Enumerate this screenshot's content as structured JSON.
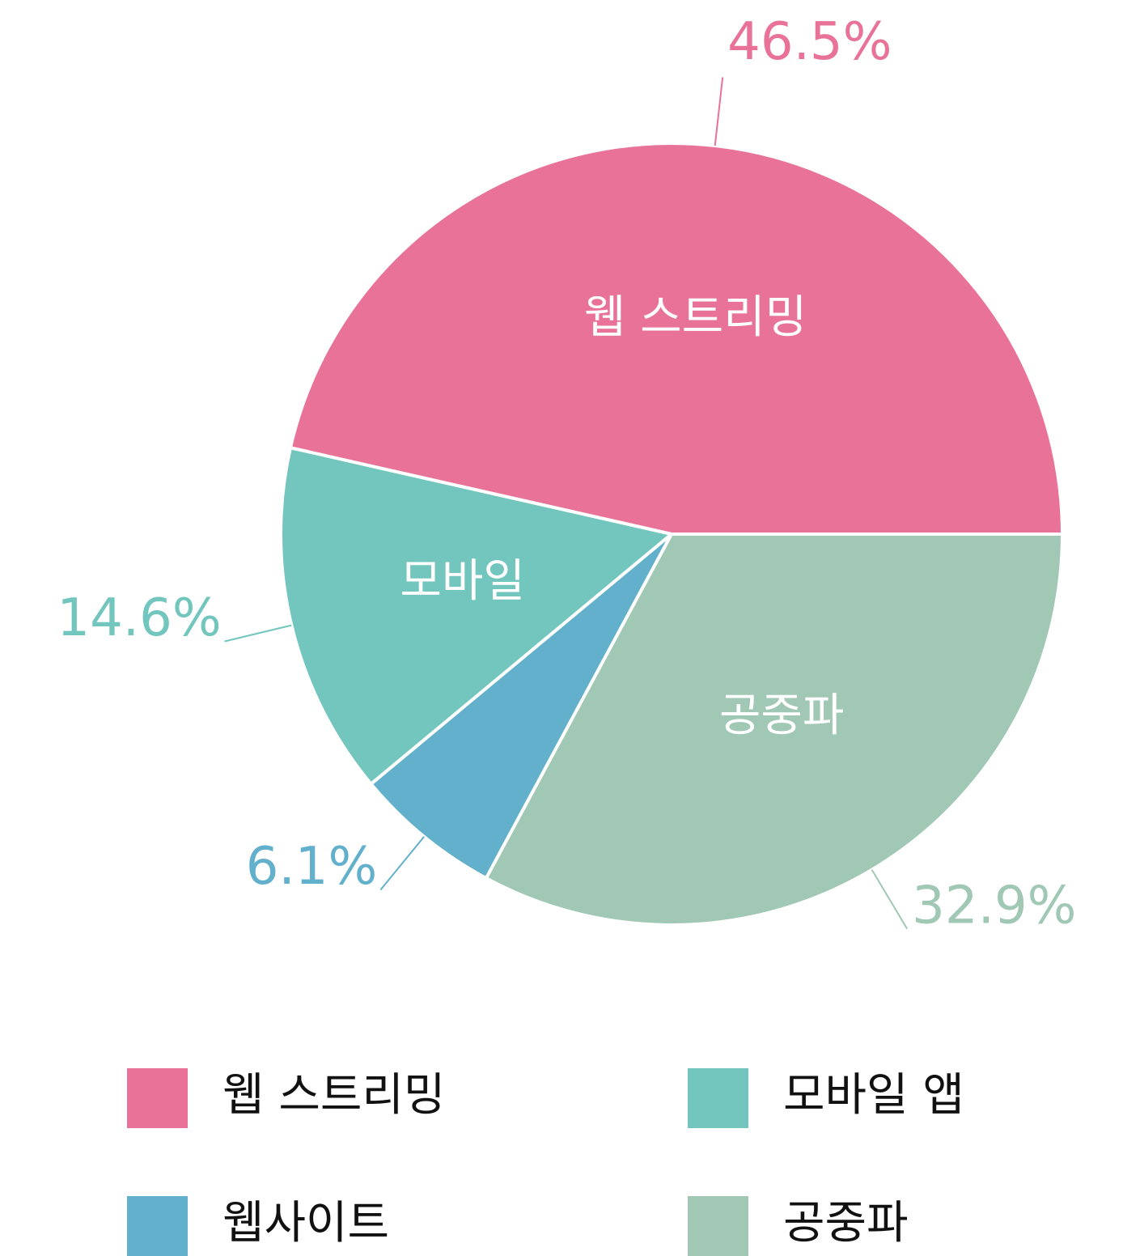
{
  "chart_data": {
    "type": "pie",
    "categories": [
      "웹 스트리밍",
      "모바일 앱",
      "웹사이트",
      "공중파"
    ],
    "values": [
      46.5,
      14.6,
      6.1,
      32.9
    ],
    "value_labels": [
      "46.5%",
      "14.6%",
      "6.1%",
      "32.9%"
    ],
    "slice_labels": [
      "웹 스트리밍",
      "모바일",
      null,
      "공중파"
    ],
    "colors": [
      "#e97298",
      "#72c6bd",
      "#62b0cc",
      "#a0c8b4"
    ]
  }
}
